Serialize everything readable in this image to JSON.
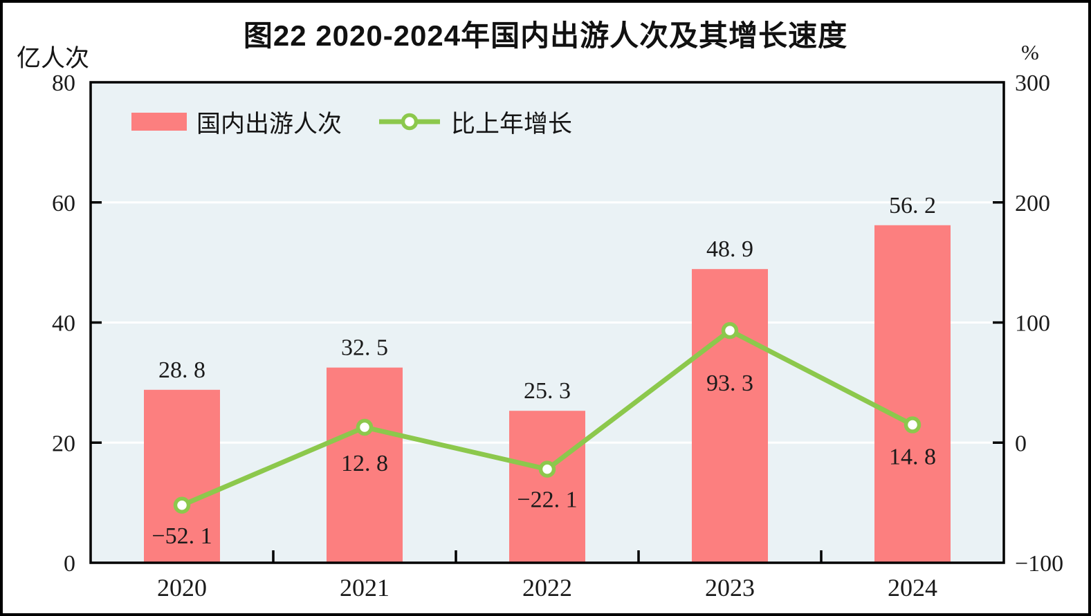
{
  "title": "图22  2020-2024年国内出游人次及其增长速度",
  "axes": {
    "left": {
      "unit": "亿人次",
      "lim": [
        0,
        80
      ],
      "ticks": [
        80,
        60,
        40,
        20,
        0
      ],
      "tick_labels": [
        "80",
        "60",
        "40",
        "20",
        "0"
      ]
    },
    "right": {
      "unit": "%",
      "lim": [
        -100,
        300
      ],
      "ticks": [
        300,
        200,
        100,
        0,
        -100
      ],
      "tick_labels": [
        "300",
        "200",
        "100",
        "0",
        "−100"
      ]
    }
  },
  "legend": [
    {
      "label": "国内出游人次",
      "marker": "bar-swatch"
    },
    {
      "label": "比上年增长",
      "marker": "line-circle"
    }
  ],
  "colors": {
    "bar": "#FC7F7F",
    "line": "#8CC84C",
    "marker_fill": "#FFFFFF",
    "plot_bg": "#EAF2F5",
    "grid": "#FFFFFF",
    "frame": "#000000",
    "text": "#1A1A1A"
  },
  "chart_data": {
    "type": "bar+line combo",
    "title": "图22  2020-2024年国内出游人次及其增长速度",
    "categories": [
      "2020",
      "2021",
      "2022",
      "2023",
      "2024"
    ],
    "series": [
      {
        "name": "国内出游人次",
        "type": "bar",
        "axis": "left",
        "unit": "亿人次",
        "values": [
          28.8,
          32.5,
          25.3,
          48.9,
          56.2
        ],
        "labels": [
          "28. 8",
          "32. 5",
          "25. 3",
          "48. 9",
          "56. 2"
        ]
      },
      {
        "name": "比上年增长",
        "type": "line",
        "axis": "right",
        "unit": "%",
        "values": [
          -52.1,
          12.8,
          -22.1,
          93.3,
          14.8
        ],
        "labels": [
          "−52. 1",
          "12. 8",
          "−22. 1",
          "93. 3",
          "14. 8"
        ]
      }
    ],
    "left_ylim": [
      0,
      80
    ],
    "right_ylim": [
      -100,
      300
    ],
    "grid": "horizontal white gridlines at left-axis ticks 20/40/60 on tinted panel",
    "legend_position": "top-left inside plot area"
  }
}
